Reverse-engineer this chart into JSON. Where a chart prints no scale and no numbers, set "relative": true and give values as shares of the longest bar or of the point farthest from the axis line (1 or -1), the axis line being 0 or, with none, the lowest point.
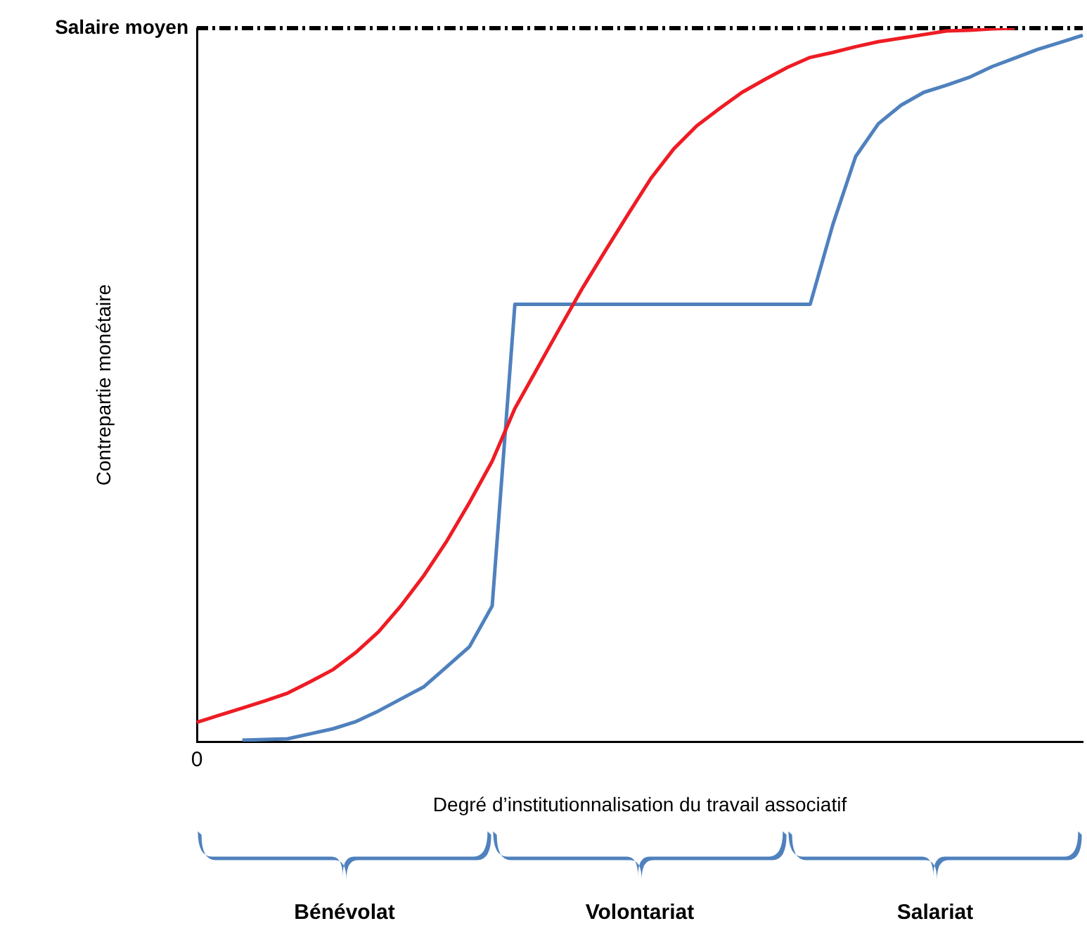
{
  "chart_data": {
    "type": "line",
    "relative": true,
    "xlabel": "Degré d’institutionnalisation du travail associatif",
    "ylabel": "Contrepartie monétaire",
    "categories": [
      null,
      null,
      null,
      null,
      null,
      null,
      null,
      null,
      null,
      null,
      null,
      null,
      null,
      null,
      null,
      null,
      null,
      null,
      null,
      null,
      null,
      null,
      null,
      null,
      null,
      null,
      null,
      null,
      null,
      null,
      null,
      null,
      null,
      null,
      null,
      null,
      null,
      null,
      null,
      null
    ],
    "series": [
      {
        "color": "#ee1c24",
        "values": [
          0.027,
          0.037,
          0.047,
          0.057,
          0.068,
          0.084,
          0.101,
          0.125,
          0.154,
          0.191,
          0.233,
          0.281,
          0.335,
          0.393,
          0.467,
          0.524,
          0.581,
          0.637,
          0.689,
          0.74,
          0.79,
          0.831,
          0.863,
          0.887,
          0.91,
          0.928,
          0.945,
          0.959,
          0.966,
          0.974,
          0.981,
          0.986,
          0.991,
          0.996,
          0.997,
          0.999,
          1,
          null,
          null,
          null
        ]
      },
      {
        "color": "#4f81bd",
        "values": [
          null,
          null,
          0.002,
          0.003,
          0.004,
          0.011,
          0.018,
          0.028,
          0.043,
          0.06,
          0.077,
          0.105,
          0.133,
          0.19,
          0.613,
          0.613,
          0.613,
          0.613,
          0.613,
          0.613,
          0.613,
          0.613,
          0.613,
          0.613,
          0.613,
          0.613,
          0.613,
          0.613,
          0.725,
          0.82,
          0.866,
          0.892,
          0.91,
          0.92,
          0.931,
          0.946,
          0.958,
          0.97,
          0.98,
          0.99
        ]
      }
    ],
    "ref_lines": [
      {
        "axis": "y",
        "value": 1,
        "label": "Salaire moyen",
        "color": "#000000",
        "line_style": "dashed"
      }
    ],
    "annotations": [
      "0",
      "Bénévolat",
      "Volontariat",
      "Salariat"
    ],
    "grid": false,
    "legend": false,
    "marker": "none",
    "line_style": "solid"
  }
}
